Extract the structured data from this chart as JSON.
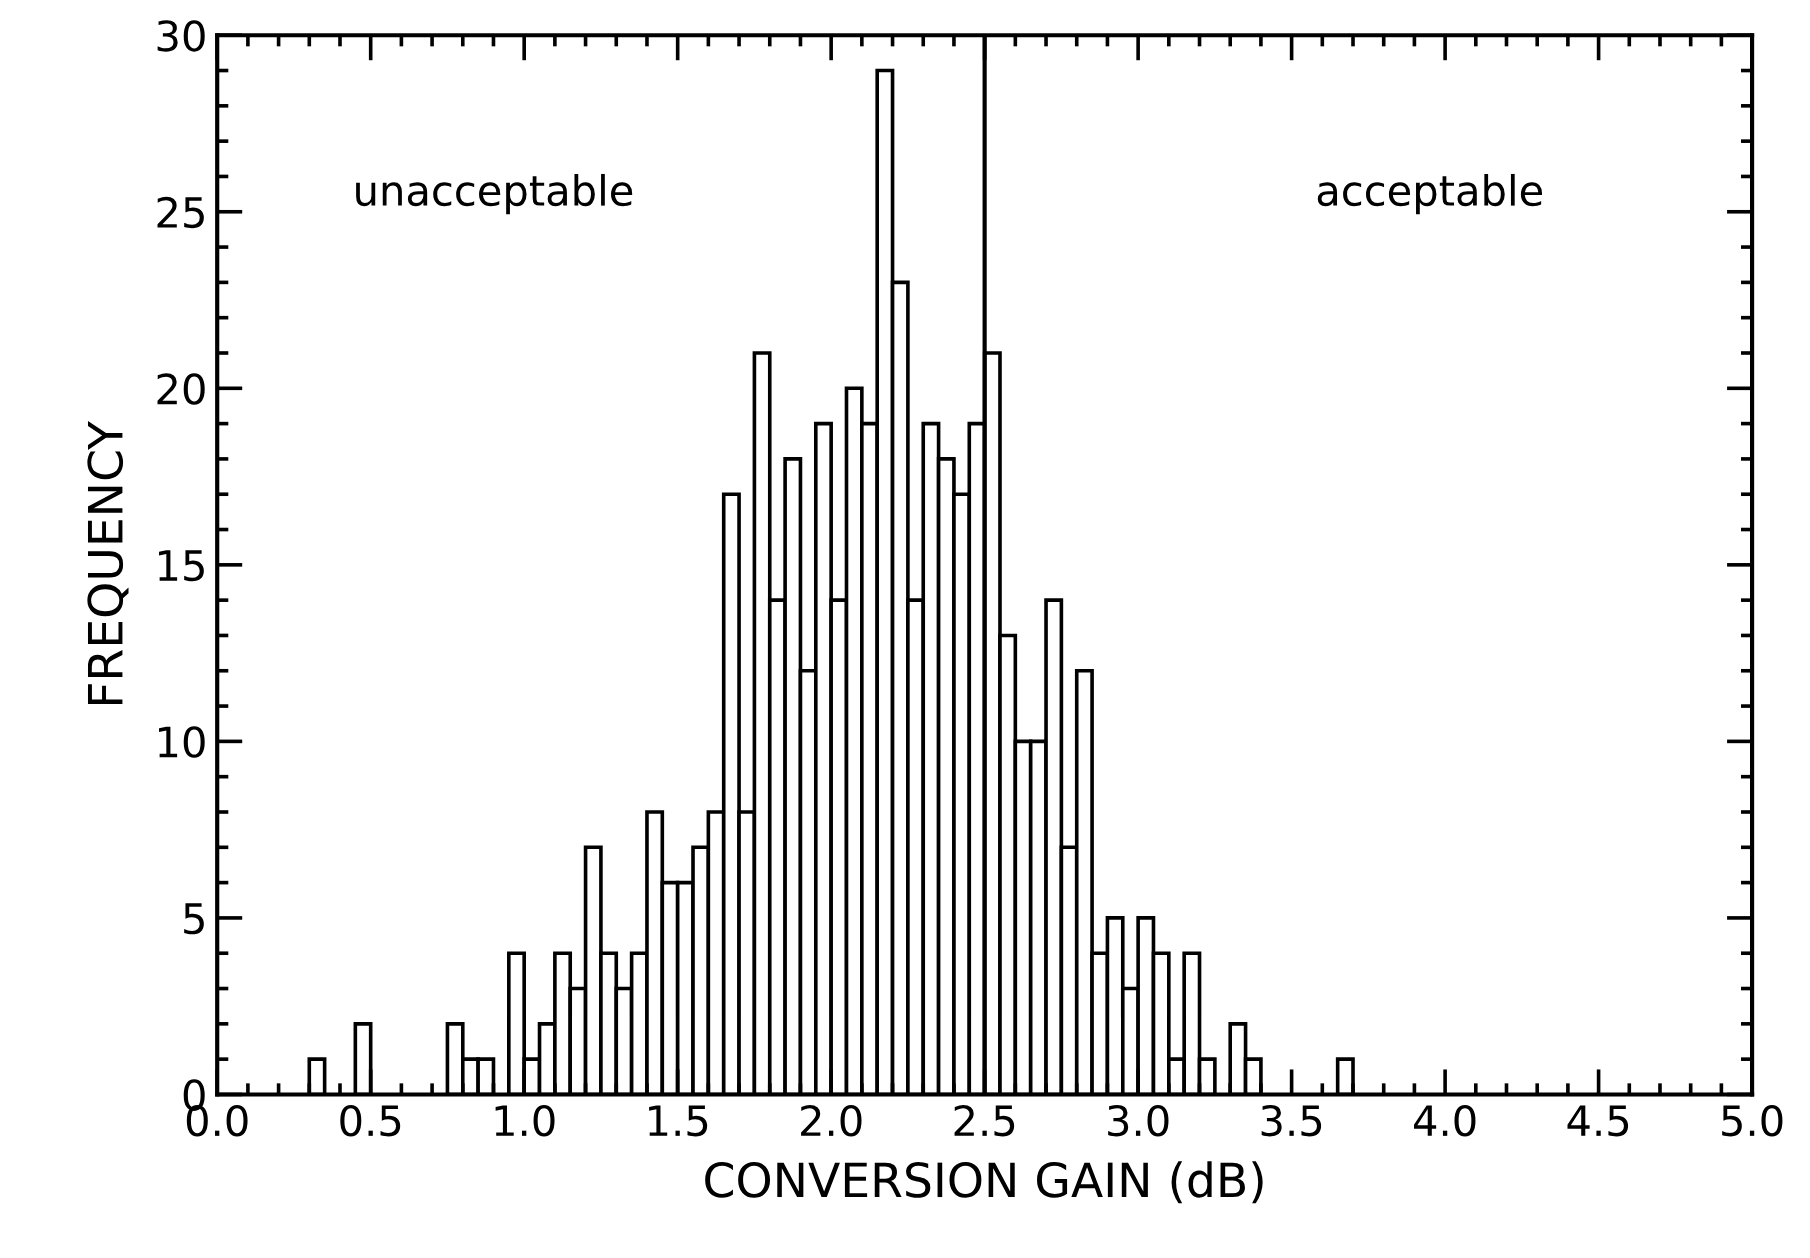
{
  "chart_data": {
    "type": "histogram",
    "xlabel": "CONVERSION GAIN (dB)",
    "ylabel": "FREQUENCY",
    "bins": [
      0.3,
      0.35,
      0.4,
      0.45,
      0.5,
      0.55,
      0.6,
      0.65,
      0.7,
      0.75,
      0.8,
      0.85,
      0.9,
      0.95,
      1.0,
      1.05,
      1.1,
      1.15,
      1.2,
      1.25,
      1.3,
      1.35,
      1.4,
      1.45,
      1.5,
      1.55,
      1.6,
      1.65,
      1.7,
      1.75,
      1.8,
      1.85,
      1.9,
      1.95,
      2.0,
      2.05,
      2.1,
      2.15,
      2.2,
      2.25,
      2.3,
      2.35,
      2.4,
      2.45,
      2.5,
      2.55,
      2.6,
      2.65,
      2.7,
      2.75,
      2.8,
      2.85,
      2.9,
      2.95,
      3.0,
      3.05,
      3.1,
      3.15,
      3.2,
      3.25,
      3.3,
      3.35,
      3.4,
      3.45,
      3.5,
      3.55,
      3.6,
      3.65,
      3.7
    ],
    "values": [
      1,
      0,
      0,
      2,
      0,
      0,
      0,
      0,
      0,
      2,
      1,
      1,
      0,
      4,
      1,
      2,
      4,
      3,
      7,
      4,
      3,
      4,
      8,
      6,
      6,
      7,
      8,
      17,
      8,
      21,
      14,
      18,
      12,
      19,
      14,
      20,
      19,
      29,
      23,
      14,
      19,
      18,
      17,
      19,
      21,
      13,
      10,
      10,
      14,
      7,
      12,
      4,
      5,
      3,
      5,
      4,
      1,
      4,
      1,
      0,
      2,
      1,
      0,
      0,
      0,
      0,
      0,
      1
    ],
    "color": "#ffffff",
    "xlim": [
      0.0,
      5.0
    ],
    "xticks": [
      {
        "value": 0.0,
        "label": "0.0"
      },
      0.5,
      {
        "value": 1.0,
        "label": "1.0"
      },
      1.5,
      {
        "value": 2.0,
        "label": "2.0"
      },
      2.5,
      {
        "value": 3.0,
        "label": "3.0"
      },
      3.5,
      {
        "value": 4.0,
        "label": "4.0"
      },
      4.5,
      {
        "value": 5.0,
        "label": "5.0"
      }
    ],
    "ylim": [
      0,
      30
    ],
    "yticks": [
      0,
      5,
      10,
      15,
      20,
      25,
      30
    ],
    "ref_lines": [
      {
        "axis": "x",
        "value": 2.5,
        "color": "#000000"
      }
    ],
    "annotations": [
      "unacceptable",
      "acceptable"
    ],
    "grid": false,
    "legend": false
  }
}
